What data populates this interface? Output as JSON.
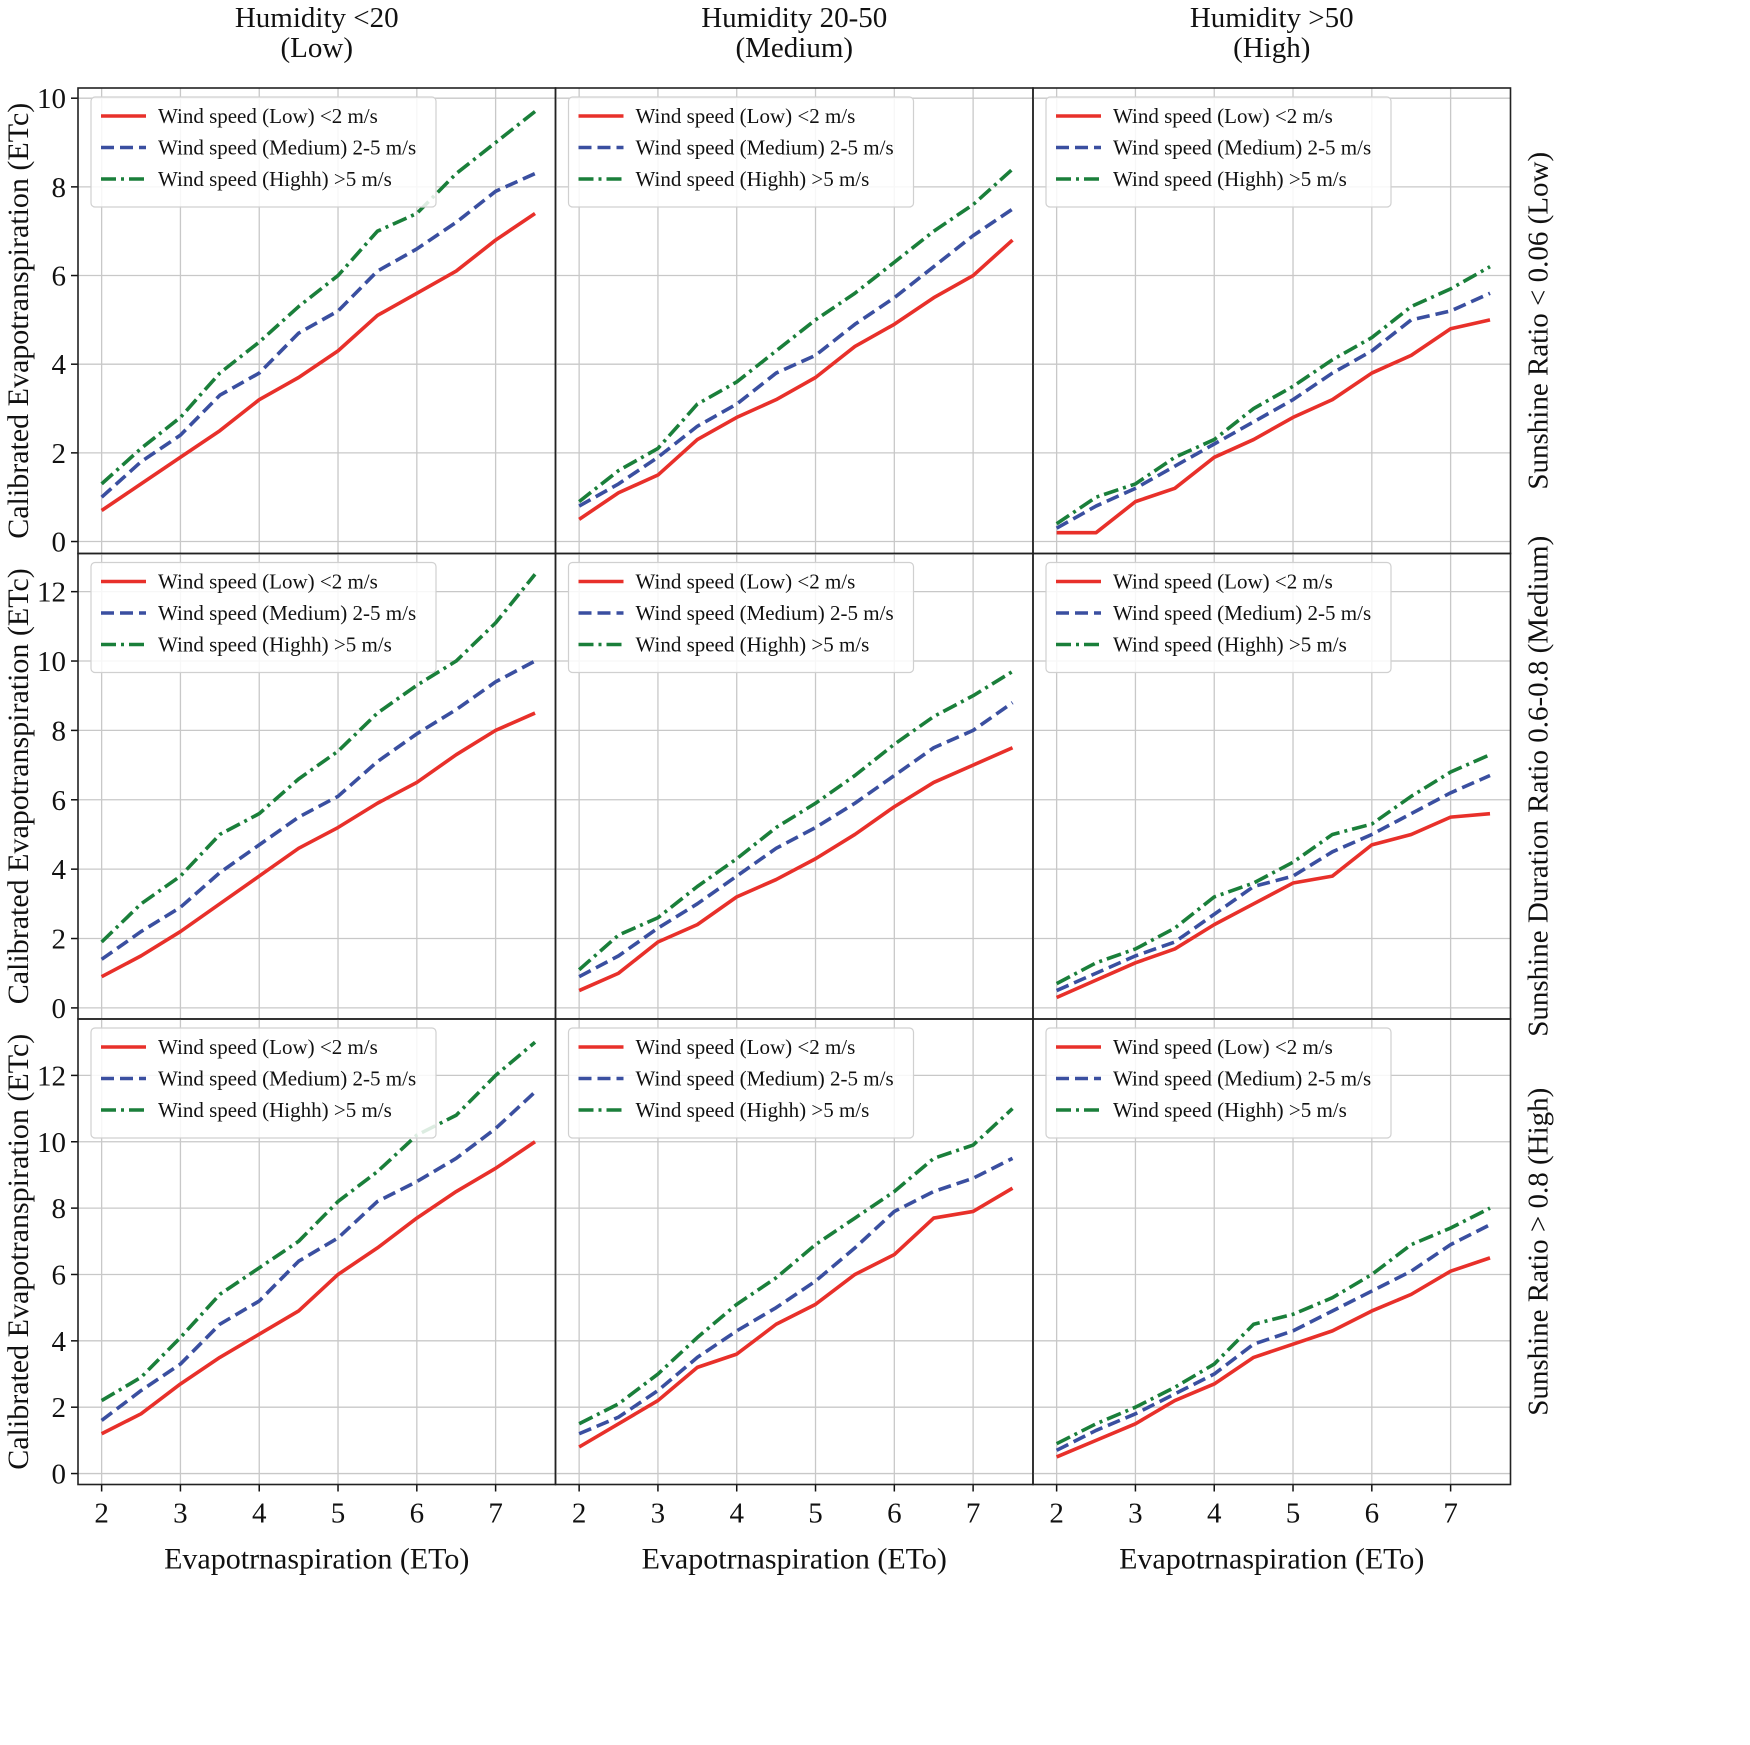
{
  "chart_data": [
    {
      "type": "line",
      "title": [
        "Humidity <20",
        "(Low)"
      ],
      "ylabel": "Calibrated Evapotranspiration (ETc)",
      "grid": true,
      "legend": "upper left",
      "x": [
        2,
        2.5,
        3,
        3.5,
        4,
        4.5,
        5,
        5.5,
        6,
        6.5,
        7,
        7.5
      ],
      "xlim": [
        1.7,
        7.76
      ],
      "xticks": [
        2,
        3,
        4,
        5,
        6,
        7
      ],
      "ylim": [
        -0.27,
        10.23
      ],
      "yticks": [
        0,
        2,
        4,
        6,
        8,
        10
      ],
      "series": [
        {
          "name": "Wind speed (Low) <2 m/s",
          "color": "#e8302a",
          "style": "solid",
          "values": [
            0.7,
            1.3,
            1.9,
            2.5,
            3.2,
            3.7,
            4.3,
            5.1,
            5.6,
            6.1,
            6.8,
            7.4
          ]
        },
        {
          "name": "Wind speed (Medium) 2-5 m/s",
          "color": "#3a4fa0",
          "style": "dashed",
          "values": [
            1.0,
            1.8,
            2.4,
            3.3,
            3.8,
            4.7,
            5.2,
            6.1,
            6.6,
            7.2,
            7.9,
            8.3
          ]
        },
        {
          "name": "Wind speed (Highh) >5 m/s",
          "color": "#1a7f3a",
          "style": "dashdot",
          "values": [
            1.3,
            2.1,
            2.8,
            3.8,
            4.5,
            5.3,
            6.0,
            7.0,
            7.4,
            8.3,
            9.0,
            9.7
          ]
        }
      ]
    },
    {
      "type": "line",
      "title": [
        "Humidity 20-50",
        "(Medium)"
      ],
      "grid": true,
      "legend": "upper left",
      "x": [
        2,
        2.5,
        3,
        3.5,
        4,
        4.5,
        5,
        5.5,
        6,
        6.5,
        7,
        7.5
      ],
      "xlim": [
        1.7,
        7.76
      ],
      "xticks": [
        2,
        3,
        4,
        5,
        6,
        7
      ],
      "ylim": [
        -0.27,
        10.23
      ],
      "yticks": [
        0,
        2,
        4,
        6,
        8,
        10
      ],
      "series": [
        {
          "name": "Wind speed (Low) <2 m/s",
          "color": "#e8302a",
          "style": "solid",
          "values": [
            0.5,
            1.1,
            1.5,
            2.3,
            2.8,
            3.2,
            3.7,
            4.4,
            4.9,
            5.5,
            6.0,
            6.8
          ]
        },
        {
          "name": "Wind speed (Medium) 2-5 m/s",
          "color": "#3a4fa0",
          "style": "dashed",
          "values": [
            0.8,
            1.3,
            1.9,
            2.6,
            3.1,
            3.8,
            4.2,
            4.9,
            5.5,
            6.2,
            6.9,
            7.5
          ]
        },
        {
          "name": "Wind speed (Highh) >5 m/s",
          "color": "#1a7f3a",
          "style": "dashdot",
          "values": [
            0.9,
            1.6,
            2.1,
            3.1,
            3.6,
            4.3,
            5.0,
            5.6,
            6.3,
            7.0,
            7.6,
            8.4
          ]
        }
      ]
    },
    {
      "type": "line",
      "title": [
        "Humidity >50",
        "(High)"
      ],
      "row_label": "Sunshine Ratio < 0.06 (Low)",
      "grid": true,
      "legend": "upper left",
      "x": [
        2,
        2.5,
        3,
        3.5,
        4,
        4.5,
        5,
        5.5,
        6,
        6.5,
        7,
        7.5
      ],
      "xlim": [
        1.7,
        7.76
      ],
      "xticks": [
        2,
        3,
        4,
        5,
        6,
        7
      ],
      "ylim": [
        -0.27,
        10.23
      ],
      "yticks": [
        0,
        2,
        4,
        6,
        8,
        10
      ],
      "series": [
        {
          "name": "Wind speed (Low) <2 m/s",
          "color": "#e8302a",
          "style": "solid",
          "values": [
            0.2,
            0.2,
            0.9,
            1.2,
            1.9,
            2.3,
            2.8,
            3.2,
            3.8,
            4.2,
            4.8,
            5.0
          ]
        },
        {
          "name": "Wind speed (Medium) 2-5 m/s",
          "color": "#3a4fa0",
          "style": "dashed",
          "values": [
            0.3,
            0.8,
            1.2,
            1.7,
            2.2,
            2.7,
            3.2,
            3.8,
            4.3,
            5.0,
            5.2,
            5.6
          ]
        },
        {
          "name": "Wind speed (Highh) >5 m/s",
          "color": "#1a7f3a",
          "style": "dashdot",
          "values": [
            0.4,
            1.0,
            1.3,
            1.9,
            2.3,
            3.0,
            3.5,
            4.1,
            4.6,
            5.3,
            5.7,
            6.2
          ]
        }
      ]
    },
    {
      "type": "line",
      "ylabel": "Calibrated Evapotranspiration (ETc)",
      "grid": true,
      "legend": "upper left",
      "x": [
        2,
        2.5,
        3,
        3.5,
        4,
        4.5,
        5,
        5.5,
        6,
        6.5,
        7,
        7.5
      ],
      "xlim": [
        1.7,
        7.76
      ],
      "xticks": [
        2,
        3,
        4,
        5,
        6,
        7
      ],
      "ylim": [
        -0.32,
        13.1
      ],
      "yticks": [
        0,
        2,
        4,
        6,
        8,
        10,
        12
      ],
      "series": [
        {
          "name": "Wind speed (Low) <2 m/s",
          "color": "#e8302a",
          "style": "solid",
          "values": [
            0.9,
            1.5,
            2.2,
            3.0,
            3.8,
            4.6,
            5.2,
            5.9,
            6.5,
            7.3,
            8.0,
            8.5
          ]
        },
        {
          "name": "Wind speed (Medium) 2-5 m/s",
          "color": "#3a4fa0",
          "style": "dashed",
          "values": [
            1.4,
            2.2,
            2.9,
            3.9,
            4.7,
            5.5,
            6.1,
            7.1,
            7.9,
            8.6,
            9.4,
            10.0
          ]
        },
        {
          "name": "Wind speed (Highh) >5 m/s",
          "color": "#1a7f3a",
          "style": "dashdot",
          "values": [
            1.9,
            3.0,
            3.8,
            5.0,
            5.6,
            6.6,
            7.4,
            8.5,
            9.3,
            10.0,
            11.1,
            12.5
          ]
        }
      ]
    },
    {
      "type": "line",
      "grid": true,
      "legend": "upper left",
      "x": [
        2,
        2.5,
        3,
        3.5,
        4,
        4.5,
        5,
        5.5,
        6,
        6.5,
        7,
        7.5
      ],
      "xlim": [
        1.7,
        7.76
      ],
      "xticks": [
        2,
        3,
        4,
        5,
        6,
        7
      ],
      "ylim": [
        -0.32,
        13.1
      ],
      "yticks": [
        0,
        2,
        4,
        6,
        8,
        10,
        12
      ],
      "series": [
        {
          "name": "Wind speed (Low) <2 m/s",
          "color": "#e8302a",
          "style": "solid",
          "values": [
            0.5,
            1.0,
            1.9,
            2.4,
            3.2,
            3.7,
            4.3,
            5.0,
            5.8,
            6.5,
            7.0,
            7.5
          ]
        },
        {
          "name": "Wind speed (Medium) 2-5 m/s",
          "color": "#3a4fa0",
          "style": "dashed",
          "values": [
            0.9,
            1.5,
            2.3,
            3.0,
            3.8,
            4.6,
            5.2,
            5.9,
            6.7,
            7.5,
            8.0,
            8.8
          ]
        },
        {
          "name": "Wind speed (Highh) >5 m/s",
          "color": "#1a7f3a",
          "style": "dashdot",
          "values": [
            1.1,
            2.1,
            2.6,
            3.5,
            4.3,
            5.2,
            5.9,
            6.7,
            7.6,
            8.4,
            9.0,
            9.7
          ]
        }
      ]
    },
    {
      "type": "line",
      "row_label": "Sunshine Duration Ratio 0.6-0.8 (Medium)",
      "grid": true,
      "legend": "upper left",
      "x": [
        2,
        2.5,
        3,
        3.5,
        4,
        4.5,
        5,
        5.5,
        6,
        6.5,
        7,
        7.5
      ],
      "xlim": [
        1.7,
        7.76
      ],
      "xticks": [
        2,
        3,
        4,
        5,
        6,
        7
      ],
      "ylim": [
        -0.32,
        13.1
      ],
      "yticks": [
        0,
        2,
        4,
        6,
        8,
        10,
        12
      ],
      "series": [
        {
          "name": "Wind speed (Low) <2 m/s",
          "color": "#e8302a",
          "style": "solid",
          "values": [
            0.3,
            0.8,
            1.3,
            1.7,
            2.4,
            3.0,
            3.6,
            3.8,
            4.7,
            5.0,
            5.5,
            5.6
          ]
        },
        {
          "name": "Wind speed (Medium) 2-5 m/s",
          "color": "#3a4fa0",
          "style": "dashed",
          "values": [
            0.5,
            1.0,
            1.5,
            1.9,
            2.7,
            3.5,
            3.8,
            4.5,
            5.0,
            5.6,
            6.2,
            6.7
          ]
        },
        {
          "name": "Wind speed (Highh) >5 m/s",
          "color": "#1a7f3a",
          "style": "dashdot",
          "values": [
            0.7,
            1.3,
            1.7,
            2.3,
            3.2,
            3.6,
            4.2,
            5.0,
            5.3,
            6.1,
            6.8,
            7.3
          ]
        }
      ]
    },
    {
      "type": "line",
      "ylabel": "Calibrated Evapotranspiration (ETc)",
      "xlabel": "Evapotrnaspiration (ETo)",
      "grid": true,
      "legend": "upper left",
      "x": [
        2,
        2.5,
        3,
        3.5,
        4,
        4.5,
        5,
        5.5,
        6,
        6.5,
        7,
        7.5
      ],
      "xlim": [
        1.7,
        7.76
      ],
      "xticks": [
        2,
        3,
        4,
        5,
        6,
        7
      ],
      "ylim": [
        -0.33,
        13.7
      ],
      "yticks": [
        0,
        2,
        4,
        6,
        8,
        10,
        12
      ],
      "series": [
        {
          "name": "Wind speed (Low) <2 m/s",
          "color": "#e8302a",
          "style": "solid",
          "values": [
            1.2,
            1.8,
            2.7,
            3.5,
            4.2,
            4.9,
            6.0,
            6.8,
            7.7,
            8.5,
            9.2,
            10.0
          ]
        },
        {
          "name": "Wind speed (Medium) 2-5 m/s",
          "color": "#3a4fa0",
          "style": "dashed",
          "values": [
            1.6,
            2.5,
            3.3,
            4.5,
            5.2,
            6.4,
            7.1,
            8.2,
            8.8,
            9.5,
            10.4,
            11.5
          ]
        },
        {
          "name": "Wind speed (Highh) >5 m/s",
          "color": "#1a7f3a",
          "style": "dashdot",
          "values": [
            2.2,
            2.9,
            4.1,
            5.4,
            6.2,
            7.0,
            8.2,
            9.1,
            10.2,
            10.8,
            12.0,
            13.0
          ]
        }
      ]
    },
    {
      "type": "line",
      "xlabel": "Evapotrnaspiration (ETo)",
      "grid": true,
      "legend": "upper left",
      "x": [
        2,
        2.5,
        3,
        3.5,
        4,
        4.5,
        5,
        5.5,
        6,
        6.5,
        7,
        7.5
      ],
      "xlim": [
        1.7,
        7.76
      ],
      "xticks": [
        2,
        3,
        4,
        5,
        6,
        7
      ],
      "ylim": [
        -0.33,
        13.7
      ],
      "yticks": [
        0,
        2,
        4,
        6,
        8,
        10,
        12
      ],
      "series": [
        {
          "name": "Wind speed (Low) <2 m/s",
          "color": "#e8302a",
          "style": "solid",
          "values": [
            0.8,
            1.5,
            2.2,
            3.2,
            3.6,
            4.5,
            5.1,
            6.0,
            6.6,
            7.7,
            7.9,
            8.6
          ]
        },
        {
          "name": "Wind speed (Medium) 2-5 m/s",
          "color": "#3a4fa0",
          "style": "dashed",
          "values": [
            1.2,
            1.7,
            2.5,
            3.5,
            4.3,
            5.0,
            5.8,
            6.8,
            7.9,
            8.5,
            8.9,
            9.5
          ]
        },
        {
          "name": "Wind speed (Highh) >5 m/s",
          "color": "#1a7f3a",
          "style": "dashdot",
          "values": [
            1.5,
            2.1,
            3.0,
            4.1,
            5.1,
            5.9,
            6.9,
            7.7,
            8.5,
            9.5,
            9.9,
            11.0
          ]
        }
      ]
    },
    {
      "type": "line",
      "xlabel": "Evapotrnaspiration (ETo)",
      "row_label": "Sunshine Ratio > 0.8 (High)",
      "grid": true,
      "legend": "upper left",
      "x": [
        2,
        2.5,
        3,
        3.5,
        4,
        4.5,
        5,
        5.5,
        6,
        6.5,
        7,
        7.5
      ],
      "xlim": [
        1.7,
        7.76
      ],
      "xticks": [
        2,
        3,
        4,
        5,
        6,
        7
      ],
      "ylim": [
        -0.33,
        13.7
      ],
      "yticks": [
        0,
        2,
        4,
        6,
        8,
        10,
        12
      ],
      "series": [
        {
          "name": "Wind speed (Low) <2 m/s",
          "color": "#e8302a",
          "style": "solid",
          "values": [
            0.5,
            1.0,
            1.5,
            2.2,
            2.7,
            3.5,
            3.9,
            4.3,
            4.9,
            5.4,
            6.1,
            6.5
          ]
        },
        {
          "name": "Wind speed (Medium) 2-5 m/s",
          "color": "#3a4fa0",
          "style": "dashed",
          "values": [
            0.7,
            1.3,
            1.8,
            2.4,
            3.0,
            3.9,
            4.3,
            4.9,
            5.5,
            6.1,
            6.9,
            7.5
          ]
        },
        {
          "name": "Wind speed (Highh) >5 m/s",
          "color": "#1a7f3a",
          "style": "dashdot",
          "values": [
            0.9,
            1.5,
            2.0,
            2.6,
            3.3,
            4.5,
            4.8,
            5.3,
            6.0,
            6.9,
            7.4,
            8.0
          ]
        }
      ]
    }
  ]
}
